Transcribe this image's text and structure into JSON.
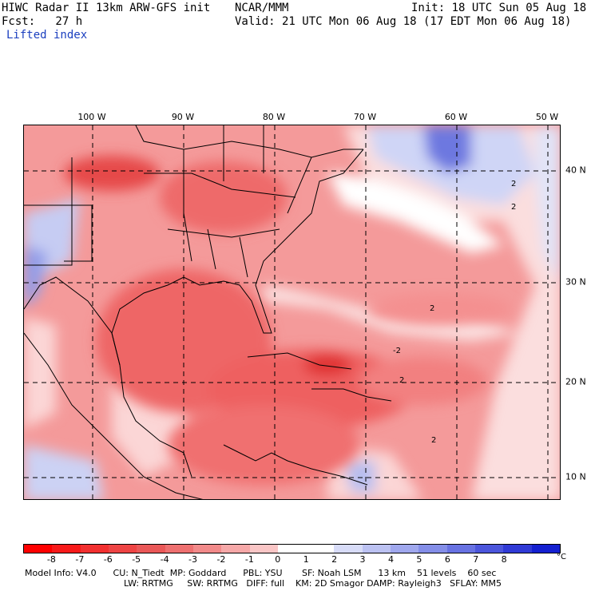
{
  "header": {
    "title": "HIWC Radar II 13km ARW-GFS init",
    "center": "NCAR/MMM",
    "init": "Init: 18 UTC Sun 05 Aug 18",
    "fcst": "Fcst:   27 h",
    "valid": "Valid: 21 UTC Mon 06 Aug 18 (17 EDT Mon 06 Aug 18)",
    "field": "Lifted index"
  },
  "map": {
    "lon_labels": [
      "100 W",
      "90 W",
      "80 W",
      "70 W",
      "60 W",
      "50 W"
    ],
    "lat_labels": [
      "40 N",
      "30 N",
      "20 N",
      "10 N"
    ],
    "contour_labels": [
      "2",
      "2",
      "-2",
      "2",
      "2",
      "2"
    ],
    "colors": {
      "warm_strong": "#e63b3b",
      "warm_mid": "#f07070",
      "warm_light": "#f7b4b4",
      "neutral": "#ffffff",
      "cool_light": "#c9cff5",
      "cool_mid": "#8f9ae8",
      "cool_strong": "#3c46d8"
    }
  },
  "colorbar": {
    "ticks": [
      "-8",
      "-7",
      "-6",
      "-5",
      "-4",
      "-3",
      "-2",
      "-1",
      "0",
      "1",
      "2",
      "3",
      "4",
      "5",
      "6",
      "7",
      "8"
    ],
    "unit": "°C",
    "colors": [
      "#ff0000",
      "#f81a1a",
      "#f23030",
      "#ee4444",
      "#ea5858",
      "#ee7070",
      "#f28a8a",
      "#f6a8a8",
      "#fac6c6",
      "#ffffff",
      "#ffffff",
      "#d8dcf8",
      "#bcc2f2",
      "#a0a8ee",
      "#848ee8",
      "#6872e2",
      "#4c56dc",
      "#303ad6",
      "#1420d0"
    ]
  },
  "footer": {
    "line1": "Model Info: V4.0      CU: N_Tiedt  MP: Goddard      PBL: YSU       SF: Noah LSM      13 km    51 levels    60 sec",
    "line2": "LW: RRTMG     SW: RRTMG   DIFF: full    KM: 2D Smagor DAMP: Rayleigh3   SFLAY: MM5"
  }
}
